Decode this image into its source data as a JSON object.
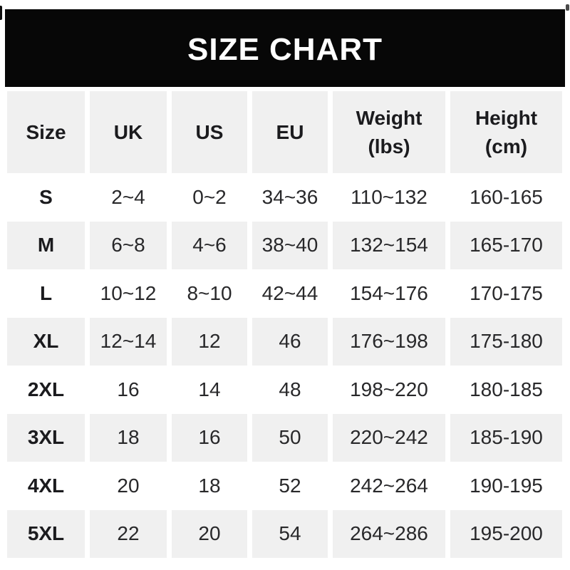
{
  "header": {
    "title": "SIZE CHART"
  },
  "chart_data": {
    "type": "table",
    "title": "SIZE CHART",
    "columns": [
      "Size",
      "UK",
      "US",
      "EU",
      "Weight (lbs)",
      "Height (cm)"
    ],
    "column_display": [
      "Size",
      "UK",
      "US",
      "EU",
      "Weight\n(lbs)",
      "Height\n(cm)"
    ],
    "rows": [
      [
        "S",
        "2~4",
        "0~2",
        "34~36",
        "110~132",
        "160-165"
      ],
      [
        "M",
        "6~8",
        "4~6",
        "38~40",
        "132~154",
        "165-170"
      ],
      [
        "L",
        "10~12",
        "8~10",
        "42~44",
        "154~176",
        "170-175"
      ],
      [
        "XL",
        "12~14",
        "12",
        "46",
        "176~198",
        "175-180"
      ],
      [
        "2XL",
        "16",
        "14",
        "48",
        "198~220",
        "180-185"
      ],
      [
        "3XL",
        "18",
        "16",
        "50",
        "220~242",
        "185-190"
      ],
      [
        "4XL",
        "20",
        "18",
        "52",
        "242~264",
        "190-195"
      ],
      [
        "5XL",
        "22",
        "20",
        "54",
        "264~286",
        "195-200"
      ]
    ],
    "layout": {
      "alternating_row_shading": "header and odd data rows shaded",
      "column_gutters": true,
      "grid_lines": false
    }
  },
  "colors": {
    "title_bg": "#070707",
    "title_text": "#ffffff",
    "row_alt_bg": "#f0f0f0",
    "text_strong": "#1b1b1e",
    "text_normal": "#28282a",
    "page_bg": "#ffffff"
  }
}
